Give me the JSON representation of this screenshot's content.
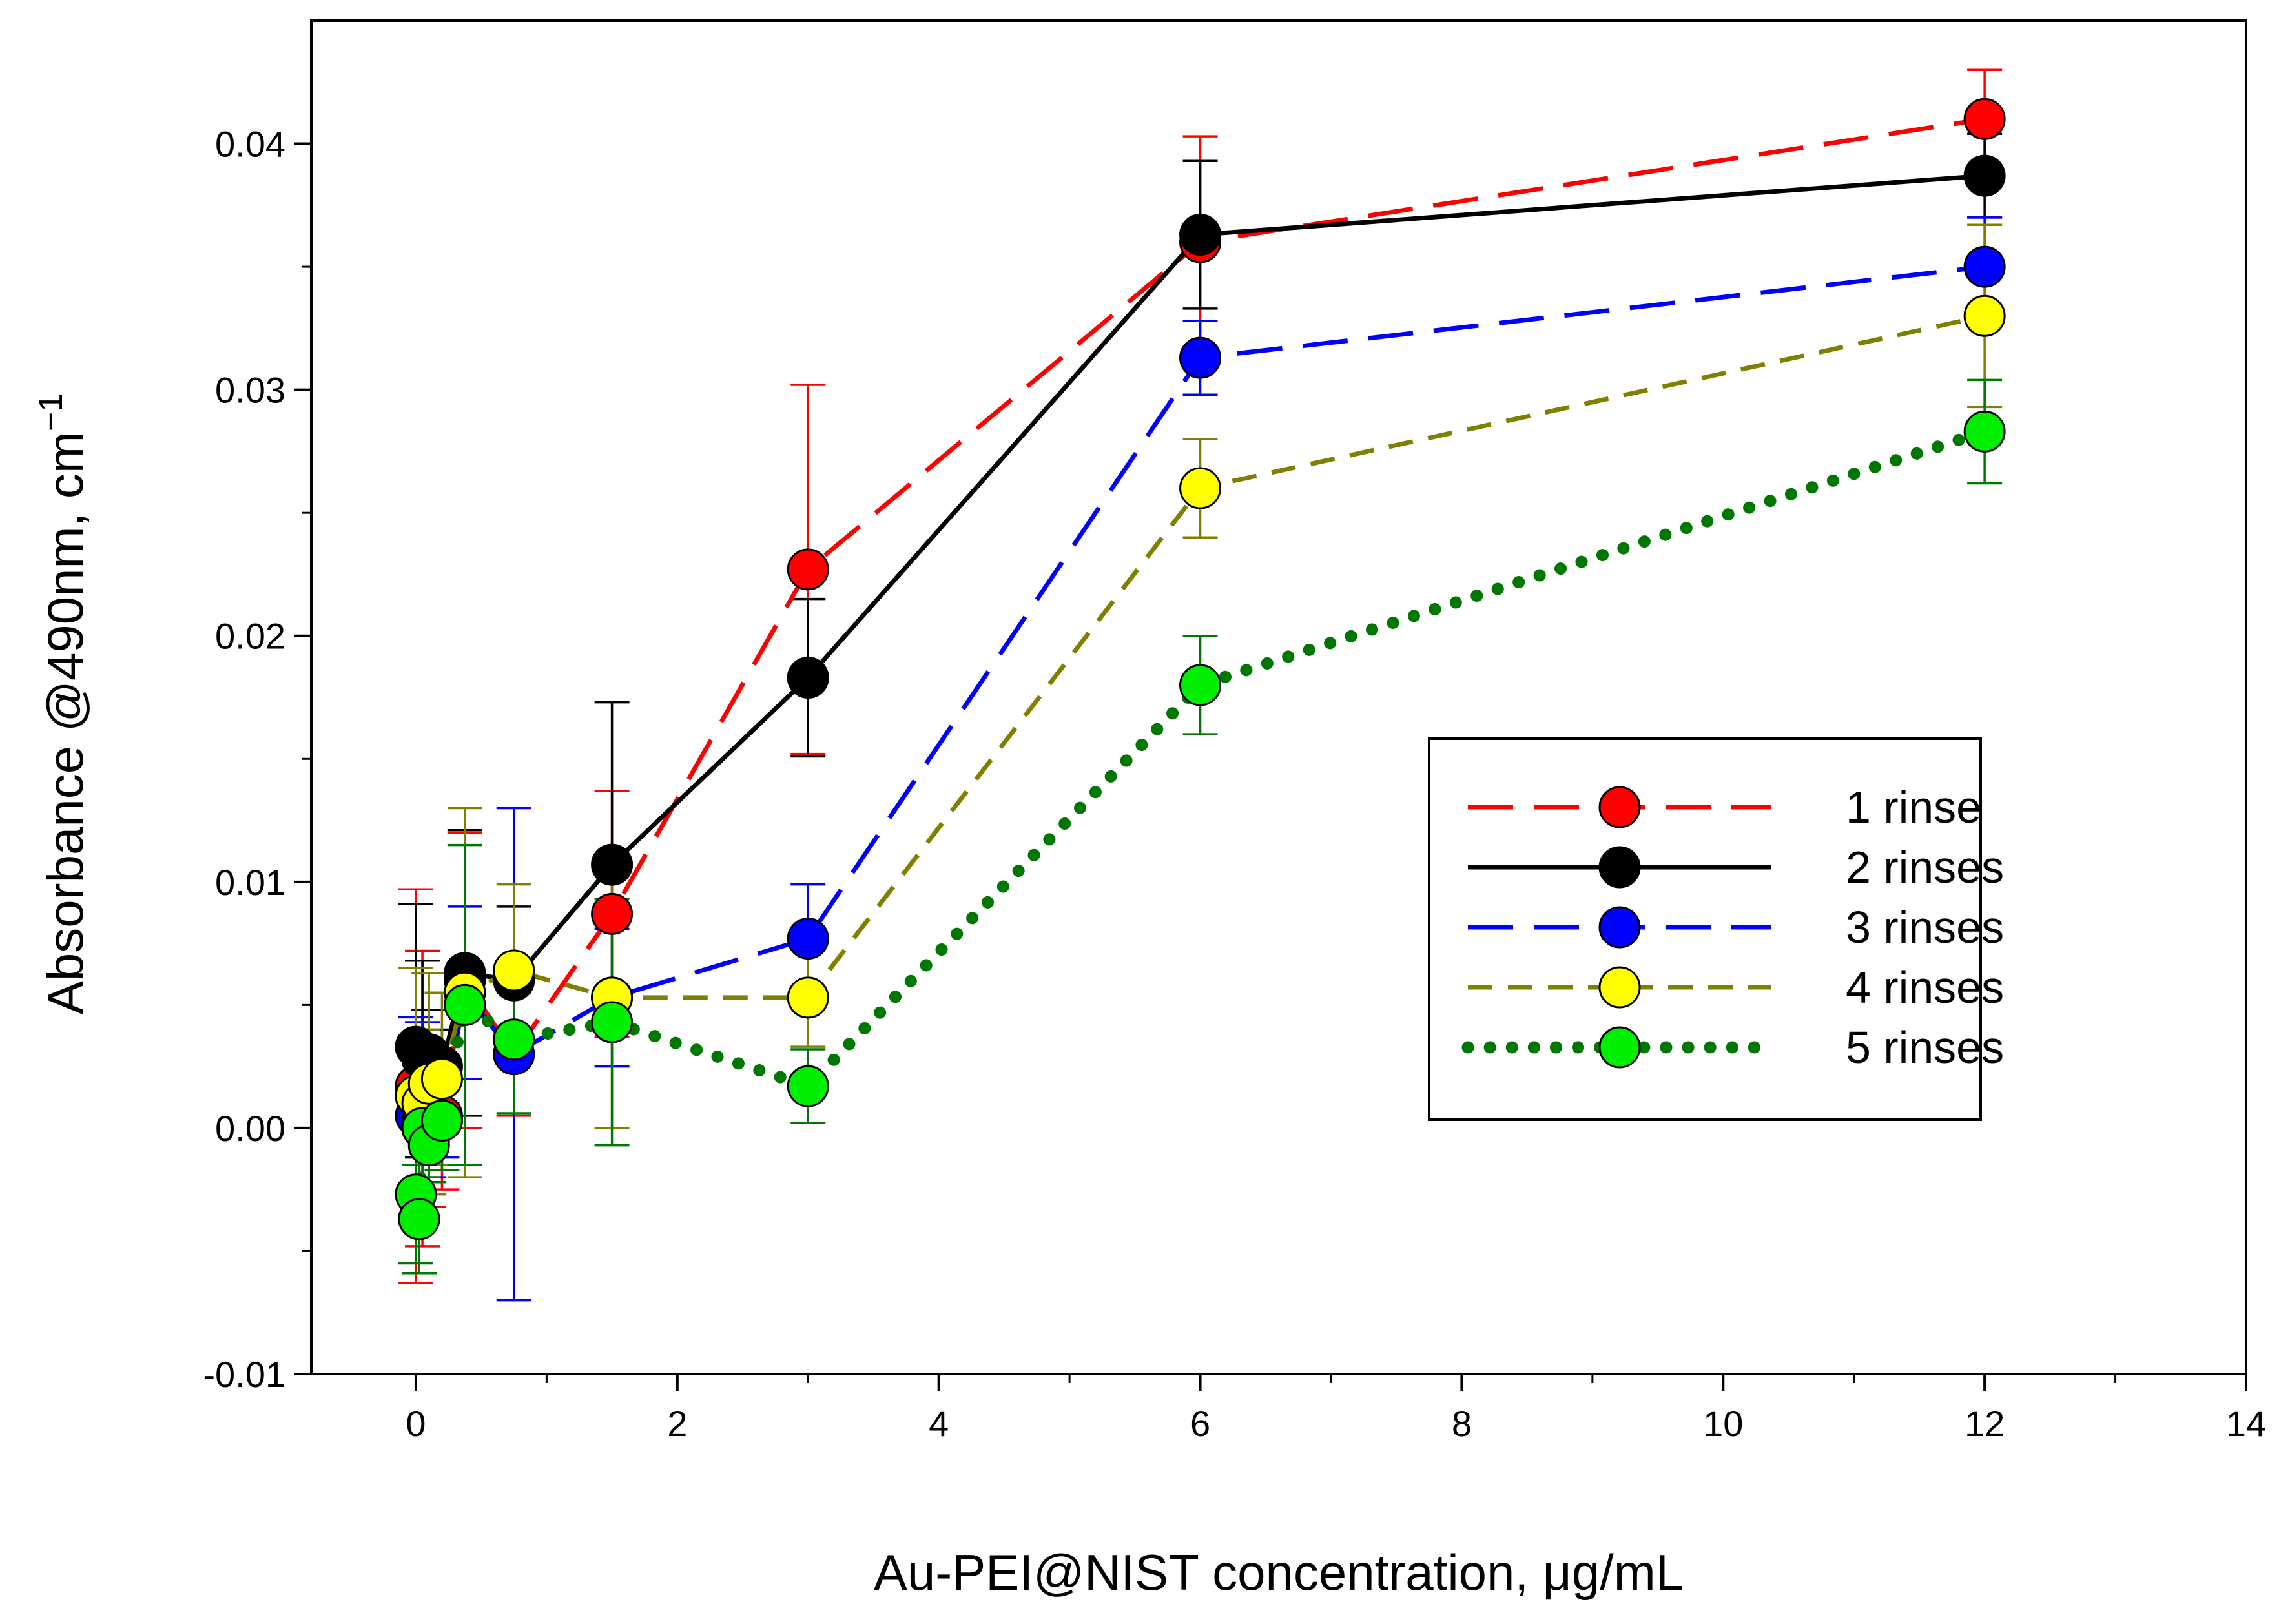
{
  "chart_data": {
    "type": "line",
    "xlabel": "Au-PEI@NIST concentration, μg/mL",
    "ylabel": "Absorbance @490nm, cm",
    "ylabel_superscript": "−1",
    "xlim": [
      -0.8,
      14
    ],
    "ylim": [
      -0.01,
      0.045
    ],
    "xticks": [
      0,
      2,
      4,
      6,
      8,
      10,
      12,
      14
    ],
    "xtick_labels": [
      "0",
      "2",
      "4",
      "6",
      "8",
      "10",
      "12",
      "14"
    ],
    "yticks": [
      -0.01,
      0.0,
      0.01,
      0.02,
      0.03,
      0.04
    ],
    "ytick_labels": [
      "-0.01",
      "0.00",
      "0.01",
      "0.02",
      "0.03",
      "0.04"
    ],
    "grid": false,
    "legend_position": "right",
    "series": [
      {
        "name": "1 rinse",
        "color": "#ff0000",
        "fill": "#ff0000",
        "dash": "long-dash",
        "points": [
          {
            "x": 0.0,
            "y": 0.0017,
            "err": 0.008
          },
          {
            "x": 0.05,
            "y": 0.0012,
            "err": 0.006
          },
          {
            "x": 0.1,
            "y": 0.0008,
            "err": 0.004
          },
          {
            "x": 0.2,
            "y": 0.0005,
            "err": 0.003
          },
          {
            "x": 0.375,
            "y": 0.006,
            "err": 0.006
          },
          {
            "x": 0.75,
            "y": 0.003,
            "err": 0.0025
          },
          {
            "x": 1.5,
            "y": 0.0087,
            "err": 0.005
          },
          {
            "x": 3.0,
            "y": 0.0227,
            "err": 0.0075
          },
          {
            "x": 6.0,
            "y": 0.036,
            "err": 0.0043
          },
          {
            "x": 12.0,
            "y": 0.041,
            "err": 0.002
          }
        ]
      },
      {
        "name": "2 rinses",
        "color": "#000000",
        "fill": "#000000",
        "dash": "solid",
        "points": [
          {
            "x": 0.0,
            "y": 0.0033,
            "err": 0.0058
          },
          {
            "x": 0.05,
            "y": 0.0028,
            "err": 0.004
          },
          {
            "x": 0.1,
            "y": 0.003,
            "err": 0.0018
          },
          {
            "x": 0.2,
            "y": 0.0025,
            "err": 0.0015
          },
          {
            "x": 0.375,
            "y": 0.0063,
            "err": 0.0058
          },
          {
            "x": 0.75,
            "y": 0.006,
            "err": 0.003
          },
          {
            "x": 1.5,
            "y": 0.0107,
            "err": 0.0066
          },
          {
            "x": 3.0,
            "y": 0.0183,
            "err": 0.0032
          },
          {
            "x": 6.0,
            "y": 0.0363,
            "err": 0.003
          },
          {
            "x": 12.0,
            "y": 0.0387,
            "err": 0.0017
          }
        ]
      },
      {
        "name": "3 rinses",
        "color": "#0000ff",
        "fill": "#0000ff",
        "dash": "long-dash",
        "points": [
          {
            "x": 0.0,
            "y": 0.0005,
            "err": 0.004
          },
          {
            "x": 0.05,
            "y": 0.0003,
            "err": 0.004
          },
          {
            "x": 0.1,
            "y": -0.0005,
            "err": 0.0015
          },
          {
            "x": 0.2,
            "y": 0.0003,
            "err": 0.0015
          },
          {
            "x": 0.375,
            "y": 0.0055,
            "err": 0.0035
          },
          {
            "x": 0.75,
            "y": 0.003,
            "err": 0.01
          },
          {
            "x": 1.5,
            "y": 0.0053,
            "err": 0.0028
          },
          {
            "x": 3.0,
            "y": 0.0077,
            "err": 0.0022
          },
          {
            "x": 6.0,
            "y": 0.0313,
            "err": 0.0015
          },
          {
            "x": 12.0,
            "y": 0.035,
            "err": 0.002
          }
        ]
      },
      {
        "name": "4 rinses",
        "color": "#808000",
        "fill": "#ffff00",
        "dash": "dash",
        "points": [
          {
            "x": 0.0,
            "y": 0.0013,
            "err": 0.0052
          },
          {
            "x": 0.05,
            "y": 0.001,
            "err": 0.003
          },
          {
            "x": 0.1,
            "y": 0.0018,
            "err": 0.0045
          },
          {
            "x": 0.2,
            "y": 0.002,
            "err": 0.0035
          },
          {
            "x": 0.375,
            "y": 0.0055,
            "err": 0.0075
          },
          {
            "x": 0.75,
            "y": 0.0064,
            "err": 0.0035
          },
          {
            "x": 1.5,
            "y": 0.0053,
            "err": 0.0053
          },
          {
            "x": 3.0,
            "y": 0.0053,
            "err": 0.002
          },
          {
            "x": 6.0,
            "y": 0.026,
            "err": 0.002
          },
          {
            "x": 12.0,
            "y": 0.033,
            "err": 0.0037
          }
        ]
      },
      {
        "name": "5 rinses",
        "color": "#007700",
        "fill": "#00ee00",
        "dash": "dotted",
        "points": [
          {
            "x": 0.0,
            "y": -0.0027,
            "err": 0.0028
          },
          {
            "x": 0.025,
            "y": -0.0037,
            "err": 0.0022
          },
          {
            "x": 0.05,
            "y": 0.0,
            "err": 0.002
          },
          {
            "x": 0.1,
            "y": -0.0007,
            "err": 0.0015
          },
          {
            "x": 0.2,
            "y": 0.0003,
            "err": 0.002
          },
          {
            "x": 0.375,
            "y": 0.005,
            "err": 0.0065
          },
          {
            "x": 0.75,
            "y": 0.0036,
            "err": 0.003
          },
          {
            "x": 1.5,
            "y": 0.0043,
            "err": 0.005
          },
          {
            "x": 3.0,
            "y": 0.0017,
            "err": 0.0015
          },
          {
            "x": 6.0,
            "y": 0.018,
            "err": 0.002
          },
          {
            "x": 12.0,
            "y": 0.0283,
            "err": 0.0021
          }
        ]
      }
    ]
  }
}
